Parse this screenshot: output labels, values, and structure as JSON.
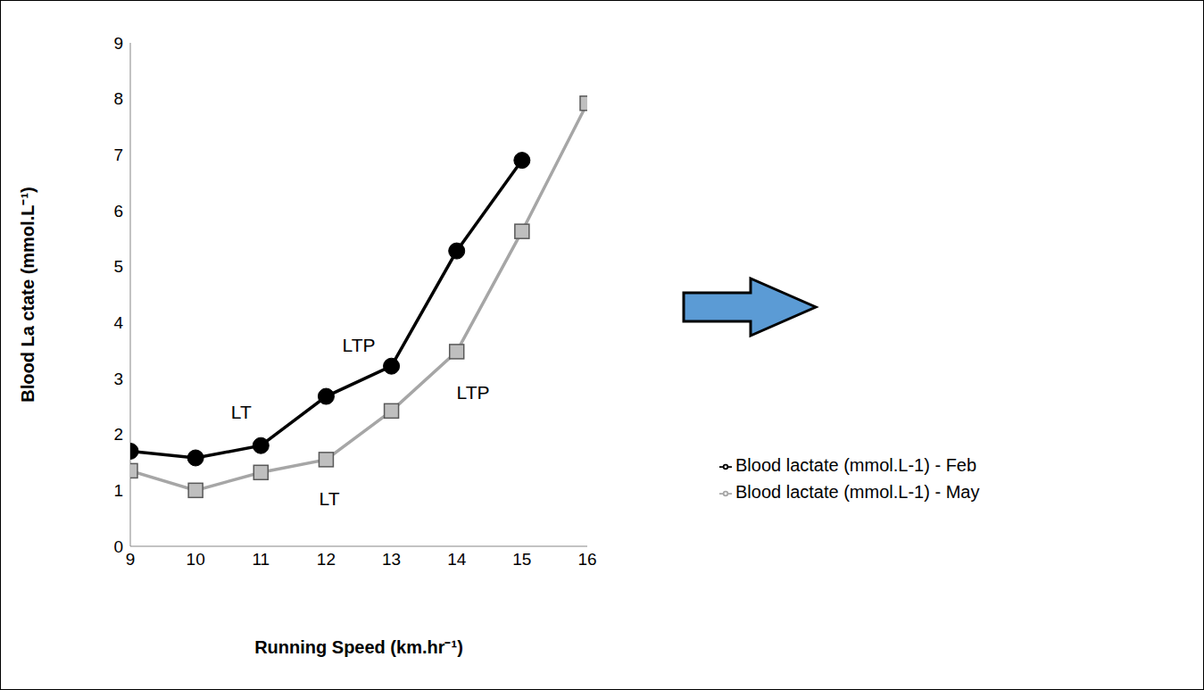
{
  "chart_data": {
    "type": "line",
    "x_label": "Running Speed (km.hr⁻¹)",
    "y_label": "Blood La ctate (mmol.L⁻¹)",
    "x": [
      9,
      10,
      11,
      12,
      13,
      14,
      15,
      16
    ],
    "series": [
      {
        "name": "Blood lactate (mmol.L-1) - May",
        "color": "#a6a6a6",
        "marker": "square",
        "values": [
          1.35,
          1.0,
          1.32,
          1.55,
          2.42,
          3.48,
          5.63,
          7.92
        ]
      },
      {
        "name": "Blood lactate (mmol.L-1) - Feb",
        "color": "#000000",
        "marker": "circle",
        "values": [
          1.7,
          1.58,
          1.8,
          2.68,
          3.22,
          5.28,
          6.9,
          null
        ]
      }
    ],
    "xlim": [
      9,
      16
    ],
    "xticks": [
      9,
      10,
      11,
      12,
      13,
      14,
      15,
      16
    ],
    "ylim": [
      0,
      9
    ],
    "yticks": [
      0,
      1,
      2,
      3,
      4,
      5,
      6,
      7,
      8,
      9
    ],
    "grid": false,
    "legend": "lower right",
    "annotations": [
      {
        "text": "LT",
        "x": 10.7,
        "y": 2.4
      },
      {
        "text": "LTP",
        "x": 12.5,
        "y": 3.6
      },
      {
        "text": "LT",
        "x": 12.05,
        "y": 0.85
      },
      {
        "text": "LTP",
        "x": 14.25,
        "y": 2.75
      }
    ]
  }
}
